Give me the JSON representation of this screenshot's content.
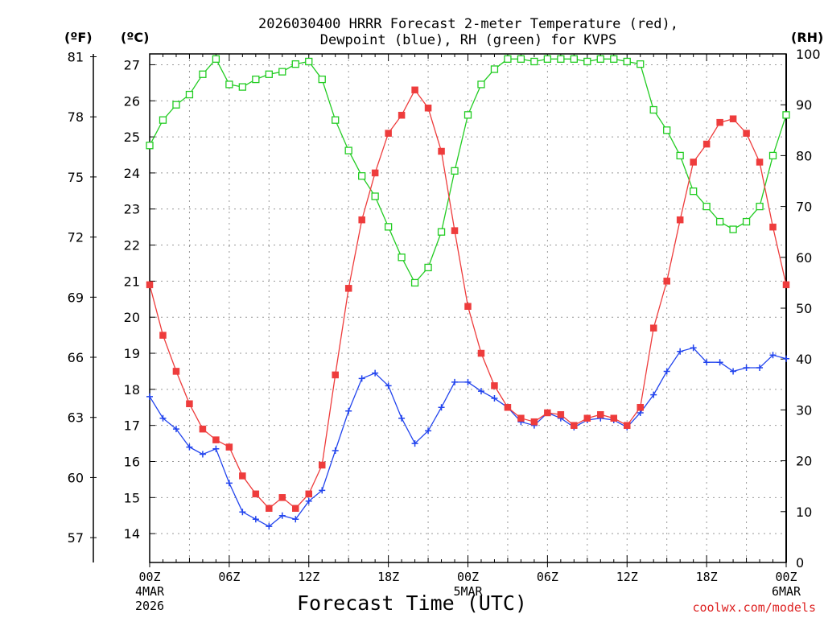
{
  "chart_data": {
    "type": "line",
    "title_line1": "2026030400 HRRR Forecast 2-meter Temperature (red),",
    "title_line2": "Dewpoint (blue), RH (green) for KVPS",
    "unit_f": "(ºF)",
    "unit_c": "(ºC)",
    "unit_rh": "(RH)",
    "xlabel": "Forecast Time (UTC)",
    "credit": "coolwx.com/models",
    "x_ticks": [
      {
        "h": 0,
        "label": "00Z",
        "date": "4MAR",
        "year": "2026"
      },
      {
        "h": 6,
        "label": "06Z",
        "date": "",
        "year": ""
      },
      {
        "h": 12,
        "label": "12Z",
        "date": "",
        "year": ""
      },
      {
        "h": 18,
        "label": "18Z",
        "date": "",
        "year": ""
      },
      {
        "h": 24,
        "label": "00Z",
        "date": "5MAR",
        "year": ""
      },
      {
        "h": 30,
        "label": "06Z",
        "date": "",
        "year": ""
      },
      {
        "h": 36,
        "label": "12Z",
        "date": "",
        "year": ""
      },
      {
        "h": 42,
        "label": "18Z",
        "date": "",
        "year": ""
      },
      {
        "h": 48,
        "label": "00Z",
        "date": "6MAR",
        "year": ""
      }
    ],
    "c_ticks": [
      "14",
      "15",
      "16",
      "17",
      "18",
      "19",
      "20",
      "21",
      "22",
      "23",
      "24",
      "25",
      "26",
      "27"
    ],
    "f_ticks": [
      "57",
      "60",
      "63",
      "66",
      "69",
      "72",
      "75",
      "78",
      "81"
    ],
    "rh_ticks": [
      "0",
      "10",
      "20",
      "30",
      "40",
      "50",
      "60",
      "70",
      "80",
      "90",
      "100"
    ],
    "c_range": [
      13.2,
      27.3
    ],
    "rh_range": [
      0,
      100
    ],
    "x_range": [
      0,
      48
    ],
    "colors": {
      "temperature": "#ee3c3c",
      "dewpoint": "#2244ee",
      "rh": "#22cc22",
      "grid": "#999999"
    },
    "temperature_c": [
      20.9,
      19.5,
      18.5,
      17.6,
      16.9,
      16.6,
      16.4,
      15.6,
      15.1,
      14.7,
      15.0,
      14.7,
      15.1,
      15.9,
      18.4,
      20.8,
      22.7,
      24.0,
      25.1,
      25.6,
      26.3,
      25.8,
      24.6,
      22.4,
      20.3,
      19.0,
      18.1,
      17.5,
      17.2,
      17.1,
      17.35,
      17.3,
      17.0,
      17.2,
      17.3,
      17.2,
      17.0,
      17.5,
      19.7,
      21.0,
      22.7,
      24.3,
      24.8,
      25.4,
      25.5,
      25.1,
      24.3,
      22.5,
      20.9
    ],
    "dewpoint_c": [
      17.8,
      17.2,
      16.9,
      16.4,
      16.2,
      16.35,
      15.4,
      14.6,
      14.4,
      14.2,
      14.5,
      14.4,
      14.9,
      15.2,
      16.3,
      17.4,
      18.3,
      18.45,
      18.1,
      17.2,
      16.5,
      16.85,
      17.5,
      18.2,
      18.2,
      17.95,
      17.75,
      17.5,
      17.1,
      17.0,
      17.35,
      17.2,
      16.95,
      17.15,
      17.2,
      17.15,
      16.95,
      17.35,
      17.85,
      18.5,
      19.05,
      19.15,
      18.75,
      18.75,
      18.5,
      18.6,
      18.6,
      18.95,
      18.85
    ],
    "rh_pct": [
      82,
      87,
      90,
      92,
      96,
      99,
      94,
      93.5,
      95,
      96,
      96.5,
      98,
      98.5,
      95,
      87,
      81,
      76,
      72,
      66,
      60,
      55,
      58,
      65,
      77,
      88,
      94,
      97,
      99,
      99,
      98.5,
      99,
      99,
      99,
      98.5,
      99,
      99,
      98.5,
      98,
      89,
      85,
      80,
      73,
      70,
      67,
      65.5,
      67,
      70,
      80,
      88
    ]
  }
}
